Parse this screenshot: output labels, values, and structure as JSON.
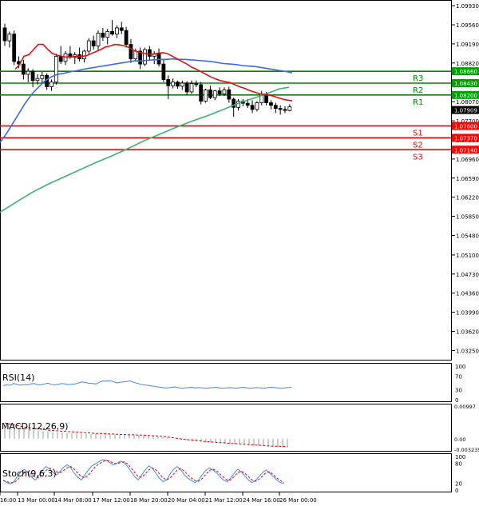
{
  "chart_data": {
    "type": "candlestick",
    "symbol": "EURUSD",
    "main": {
      "ylim": [
        1.0307,
        1.1001
      ],
      "y_ticks": [
        "1.09930",
        "1.09560",
        "1.09190",
        "1.08820",
        "1.08450",
        "1.08070",
        "1.07700",
        "1.07330",
        "1.06960",
        "1.06590",
        "1.06220",
        "1.05850",
        "1.05480",
        "1.05100",
        "1.04730",
        "1.04360",
        "1.03990",
        "1.03620",
        "1.03250"
      ],
      "price_tags": [
        {
          "value": "1.08660",
          "color": "#00a000"
        },
        {
          "value": "1.08430",
          "color": "#00a000"
        },
        {
          "value": "1.08200",
          "color": "#00a000"
        },
        {
          "value": "1.07909",
          "color": "#000000"
        },
        {
          "value": "1.07600",
          "color": "#ff0000"
        },
        {
          "value": "1.07370",
          "color": "#ff0000"
        },
        {
          "value": "1.07140",
          "color": "#ff0000"
        }
      ],
      "levels": [
        {
          "label": "R3",
          "value": 1.0866,
          "color": "#008800"
        },
        {
          "label": "R2",
          "value": 1.0843,
          "color": "#008800"
        },
        {
          "label": "R1",
          "value": 1.082,
          "color": "#008800"
        },
        {
          "label": "S1",
          "value": 1.076,
          "color": "#dd0000"
        },
        {
          "label": "S2",
          "value": 1.0737,
          "color": "#dd0000"
        },
        {
          "label": "S3",
          "value": 1.0714,
          "color": "#dd0000"
        }
      ],
      "candles": [
        [
          1.095,
          1.0958,
          1.0915,
          1.0925
        ],
        [
          1.0925,
          1.0943,
          1.0912,
          1.0938
        ],
        [
          1.0938,
          1.0945,
          1.0878,
          1.0885
        ],
        [
          1.0885,
          1.0895,
          1.0872,
          1.088
        ],
        [
          1.088,
          1.0888,
          1.085,
          1.086
        ],
        [
          1.086,
          1.0872,
          1.0845,
          1.0866
        ],
        [
          1.0866,
          1.087,
          1.0835,
          1.0848
        ],
        [
          1.0848,
          1.086,
          1.084,
          1.0852
        ],
        [
          1.0852,
          1.0865,
          1.0843,
          1.0858
        ],
        [
          1.0858,
          1.0862,
          1.083,
          1.0836
        ],
        [
          1.0836,
          1.085,
          1.0828,
          1.0845
        ],
        [
          1.0845,
          1.09,
          1.084,
          1.0895
        ],
        [
          1.0895,
          1.0915,
          1.088,
          1.0885
        ],
        [
          1.0885,
          1.0905,
          1.0878,
          1.09
        ],
        [
          1.09,
          1.0915,
          1.089,
          1.0893
        ],
        [
          1.0893,
          1.0903,
          1.088,
          1.0898
        ],
        [
          1.0898,
          1.0912,
          1.0885,
          1.089
        ],
        [
          1.089,
          1.0908,
          1.0883,
          1.0905
        ],
        [
          1.0905,
          1.093,
          1.0898,
          1.0925
        ],
        [
          1.0925,
          1.0935,
          1.0908,
          1.0915
        ],
        [
          1.0915,
          1.0945,
          1.0905,
          1.094
        ],
        [
          1.094,
          1.095,
          1.0925,
          1.0932
        ],
        [
          1.0932,
          1.0948,
          1.0918,
          1.0943
        ],
        [
          1.0943,
          1.0965,
          1.0935,
          1.0938
        ],
        [
          1.0938,
          1.0955,
          1.093,
          1.095
        ],
        [
          1.095,
          1.0962,
          1.0938,
          1.0945
        ],
        [
          1.0945,
          1.0952,
          1.0912,
          1.0918
        ],
        [
          1.0918,
          1.0928,
          1.0882,
          1.089
        ],
        [
          1.089,
          1.091,
          1.0885,
          1.0905
        ],
        [
          1.0905,
          1.0912,
          1.087,
          1.088
        ],
        [
          1.088,
          1.0912,
          1.0876,
          1.0908
        ],
        [
          1.0908,
          1.0915,
          1.0888,
          1.0895
        ],
        [
          1.0895,
          1.0905,
          1.088,
          1.09
        ],
        [
          1.09,
          1.091,
          1.0875,
          1.088
        ],
        [
          1.088,
          1.0888,
          1.0845,
          1.085
        ],
        [
          1.085,
          1.0858,
          1.0812,
          1.0838
        ],
        [
          1.0838,
          1.0852,
          1.0833,
          1.0845
        ],
        [
          1.0845,
          1.0848,
          1.0832,
          1.0837
        ],
        [
          1.0837,
          1.0848,
          1.083,
          1.0843
        ],
        [
          1.0843,
          1.0847,
          1.082,
          1.0826
        ],
        [
          1.0826,
          1.0848,
          1.0822,
          1.0842
        ],
        [
          1.0842,
          1.0848,
          1.0835,
          1.084
        ],
        [
          1.084,
          1.0845,
          1.0802,
          1.0808
        ],
        [
          1.0808,
          1.0832,
          1.0805,
          1.083
        ],
        [
          1.083,
          1.0838,
          1.0812,
          1.0815
        ],
        [
          1.0815,
          1.083,
          1.081,
          1.0828
        ],
        [
          1.0828,
          1.0835,
          1.0818,
          1.0822
        ],
        [
          1.0822,
          1.0835,
          1.0818,
          1.083
        ],
        [
          1.083,
          1.0836,
          1.0805,
          1.0812
        ],
        [
          1.0812,
          1.0815,
          1.0778,
          1.0796
        ],
        [
          1.0796,
          1.0812,
          1.079,
          1.0808
        ],
        [
          1.0808,
          1.0812,
          1.0798,
          1.0804
        ],
        [
          1.0804,
          1.0812,
          1.0795,
          1.08
        ],
        [
          1.08,
          1.081,
          1.0785,
          1.0792
        ],
        [
          1.0792,
          1.0808,
          1.0788,
          1.0805
        ],
        [
          1.0805,
          1.0828,
          1.08,
          1.0822
        ],
        [
          1.0822,
          1.0826,
          1.08,
          1.0805
        ],
        [
          1.0805,
          1.081,
          1.0792,
          1.08
        ],
        [
          1.08,
          1.0805,
          1.0785,
          1.0794
        ],
        [
          1.0794,
          1.08,
          1.0782,
          1.0792
        ],
        [
          1.0792,
          1.0798,
          1.0785,
          1.079
        ],
        [
          1.079,
          1.0802,
          1.0788,
          1.0797
        ]
      ],
      "ma_fast": [
        [
          19,
          1.087
        ],
        [
          24,
          1.0878
        ],
        [
          30,
          1.0895
        ],
        [
          36,
          1.0898
        ],
        [
          42,
          1.0908
        ],
        [
          48,
          1.0918
        ],
        [
          54,
          1.0918
        ],
        [
          60,
          1.0908
        ],
        [
          66,
          1.09
        ],
        [
          72,
          1.0897
        ],
        [
          78,
          1.0895
        ],
        [
          84,
          1.0893
        ],
        [
          90,
          1.0894
        ],
        [
          96,
          1.0895
        ],
        [
          102,
          1.0895
        ],
        [
          108,
          1.0896
        ],
        [
          114,
          1.09
        ],
        [
          120,
          1.0904
        ],
        [
          126,
          1.0908
        ],
        [
          132,
          1.0913
        ],
        [
          138,
          1.0915
        ],
        [
          144,
          1.0918
        ],
        [
          150,
          1.0917
        ],
        [
          156,
          1.0915
        ],
        [
          162,
          1.0912
        ],
        [
          168,
          1.0906
        ],
        [
          174,
          1.0903
        ],
        [
          180,
          1.0901
        ],
        [
          186,
          1.0899
        ],
        [
          192,
          1.0899
        ],
        [
          198,
          1.0901
        ],
        [
          204,
          1.0902
        ],
        [
          210,
          1.09
        ],
        [
          216,
          1.0895
        ],
        [
          222,
          1.089
        ],
        [
          228,
          1.0885
        ],
        [
          234,
          1.088
        ],
        [
          240,
          1.0874
        ],
        [
          246,
          1.087
        ],
        [
          252,
          1.0865
        ],
        [
          258,
          1.086
        ],
        [
          264,
          1.0855
        ],
        [
          270,
          1.0851
        ],
        [
          276,
          1.0848
        ],
        [
          282,
          1.0846
        ],
        [
          288,
          1.0844
        ],
        [
          294,
          1.084
        ],
        [
          300,
          1.0836
        ],
        [
          306,
          1.0833
        ],
        [
          312,
          1.0829
        ],
        [
          318,
          1.0826
        ],
        [
          324,
          1.0823
        ],
        [
          330,
          1.0821
        ],
        [
          336,
          1.082
        ],
        [
          342,
          1.0818
        ],
        [
          348,
          1.0815
        ],
        [
          354,
          1.0812
        ],
        [
          360,
          1.081
        ],
        [
          366,
          1.0809
        ]
      ],
      "ma_mid": [
        [
          0,
          1.0728
        ],
        [
          8,
          1.0745
        ],
        [
          16,
          1.0765
        ],
        [
          24,
          1.0785
        ],
        [
          32,
          1.0805
        ],
        [
          40,
          1.0822
        ],
        [
          48,
          1.0835
        ],
        [
          56,
          1.0847
        ],
        [
          64,
          1.0855
        ],
        [
          72,
          1.086
        ],
        [
          80,
          1.0862
        ],
        [
          88,
          1.0865
        ],
        [
          96,
          1.0867
        ],
        [
          104,
          1.087
        ],
        [
          112,
          1.0872
        ],
        [
          120,
          1.0874
        ],
        [
          128,
          1.0876
        ],
        [
          136,
          1.0878
        ],
        [
          144,
          1.088
        ],
        [
          152,
          1.0882
        ],
        [
          160,
          1.0884
        ],
        [
          168,
          1.0886
        ],
        [
          176,
          1.0886
        ],
        [
          184,
          1.0887
        ],
        [
          192,
          1.0888
        ],
        [
          200,
          1.0889
        ],
        [
          208,
          1.0889
        ],
        [
          216,
          1.089
        ],
        [
          224,
          1.0889
        ],
        [
          232,
          1.0889
        ],
        [
          240,
          1.0888
        ],
        [
          248,
          1.0887
        ],
        [
          256,
          1.0886
        ],
        [
          264,
          1.0885
        ],
        [
          272,
          1.0883
        ],
        [
          280,
          1.0881
        ],
        [
          288,
          1.088
        ],
        [
          296,
          1.0879
        ],
        [
          304,
          1.0877
        ],
        [
          312,
          1.0876
        ],
        [
          320,
          1.0875
        ],
        [
          328,
          1.0873
        ],
        [
          336,
          1.0871
        ],
        [
          344,
          1.0869
        ],
        [
          352,
          1.0867
        ],
        [
          360,
          1.0865
        ],
        [
          366,
          1.0863
        ]
      ],
      "ma_slow": [
        [
          0,
          1.0593
        ],
        [
          20,
          1.0612
        ],
        [
          40,
          1.0631
        ],
        [
          60,
          1.0647
        ],
        [
          80,
          1.0661
        ],
        [
          100,
          1.0675
        ],
        [
          120,
          1.0689
        ],
        [
          140,
          1.0702
        ],
        [
          160,
          1.0716
        ],
        [
          180,
          1.0731
        ],
        [
          200,
          1.0744
        ],
        [
          220,
          1.0757
        ],
        [
          240,
          1.0769
        ],
        [
          260,
          1.078
        ],
        [
          280,
          1.0792
        ],
        [
          300,
          1.0805
        ],
        [
          320,
          1.0815
        ],
        [
          340,
          1.0826
        ],
        [
          350,
          1.0832
        ],
        [
          362,
          1.0835
        ]
      ]
    },
    "x_ticks": [
      "16:00",
      "13 Mar 00:00",
      "14 Mar 08:00",
      "17 Mar 12:00",
      "18 Mar 20:00",
      "20 Mar 04:00",
      "21 Mar 12:00",
      "24 Mar 16:00",
      "26 Mar 00:00"
    ],
    "rsi": {
      "label": "RSI(14)",
      "ticks": [
        "100",
        "70",
        "30",
        "0"
      ],
      "values": [
        42,
        44,
        43,
        48,
        46,
        43,
        45,
        44,
        47,
        48,
        45,
        44,
        47,
        49,
        46,
        44,
        46,
        48,
        47,
        45,
        46,
        47,
        50,
        53,
        51,
        49,
        48,
        47,
        52,
        56,
        55,
        57,
        54,
        50,
        52,
        53,
        54,
        56,
        52,
        49,
        46,
        44,
        43,
        41,
        40,
        38,
        37,
        35,
        35,
        37,
        38,
        36,
        34,
        35,
        36,
        37,
        35,
        36,
        35,
        34,
        35,
        36,
        37,
        35,
        34,
        35,
        36,
        35,
        34,
        36,
        37,
        35,
        34,
        35,
        36,
        35,
        34,
        36,
        37,
        36,
        35,
        34,
        35,
        36,
        37
      ]
    },
    "macd": {
      "label": "MACD(12,26,9)",
      "ticks": [
        "0.00997",
        "0.00",
        "-0.003235"
      ],
      "values": [
        0.004,
        0.0038,
        0.0035,
        0.0033,
        0.003,
        0.0028,
        0.0026,
        0.0024,
        0.0023,
        0.0021,
        0.002,
        0.0019,
        0.0018,
        0.0017,
        0.0016,
        0.0016,
        0.0015,
        0.0015,
        0.0014,
        0.0014,
        0.0013,
        0.0013,
        0.0013,
        0.0013,
        0.0012,
        0.0012,
        0.0012,
        0.0011,
        0.0011,
        0.001,
        0.0009,
        0.0008,
        0.0007,
        0.0005,
        0.0003,
        0.0001,
        -0.0001,
        -0.0003,
        -0.0005,
        -0.0007,
        -0.0008,
        -0.001,
        -0.0011,
        -0.0012,
        -0.0013,
        -0.0014,
        -0.0015,
        -0.0016,
        -0.0017,
        -0.0018,
        -0.0019,
        -0.002,
        -0.0021,
        -0.0022,
        -0.0023,
        -0.0024,
        -0.0025,
        -0.0026,
        -0.0027,
        -0.0027
      ],
      "signal": [
        0.0048,
        0.0045,
        0.0042,
        0.0039,
        0.0036,
        0.0034,
        0.0032,
        0.003,
        0.0028,
        0.0026,
        0.0025,
        0.0024,
        0.0023,
        0.0022,
        0.0021,
        0.002,
        0.0019,
        0.0018,
        0.0017,
        0.0016,
        0.0016,
        0.0015,
        0.0014,
        0.0014,
        0.0013,
        0.0013,
        0.0012,
        0.0012,
        0.0011,
        0.0011,
        0.001,
        0.0009,
        0.0008,
        0.0007,
        0.0005,
        0.0003,
        0.0001,
        -0.0001,
        -0.0003,
        -0.0004,
        -0.0006,
        -0.0007,
        -0.0009,
        -0.001,
        -0.0011,
        -0.0012,
        -0.0013,
        -0.0014,
        -0.0015,
        -0.0016,
        -0.0017,
        -0.0018,
        -0.0019,
        -0.002,
        -0.0021,
        -0.0022,
        -0.0023,
        -0.0023,
        -0.0024,
        -0.0024
      ]
    },
    "stoch": {
      "label": "Stoch(9,6,3)",
      "ticks": [
        "100",
        "80",
        "20",
        "0"
      ],
      "k": [
        30,
        22,
        18,
        25,
        40,
        55,
        62,
        50,
        38,
        30,
        42,
        58,
        70,
        64,
        52,
        45,
        55,
        68,
        75,
        66,
        50,
        38,
        30,
        45,
        60,
        72,
        78,
        85,
        90,
        88,
        82,
        75,
        80,
        86,
        82,
        70,
        55,
        40,
        30,
        45,
        60,
        72,
        65,
        50,
        35,
        25,
        30,
        48,
        62,
        70,
        60,
        45,
        35,
        28,
        22,
        30,
        45,
        58,
        66,
        60,
        52,
        40,
        30,
        25,
        35,
        50,
        62,
        55,
        42,
        30,
        22,
        28,
        40,
        52,
        60,
        50,
        40,
        30,
        22,
        20
      ],
      "d": [
        28,
        25,
        22,
        22,
        30,
        42,
        52,
        55,
        48,
        38,
        36,
        45,
        58,
        64,
        62,
        54,
        52,
        58,
        66,
        70,
        62,
        50,
        40,
        36,
        45,
        58,
        70,
        78,
        84,
        88,
        86,
        80,
        78,
        82,
        84,
        78,
        66,
        52,
        40,
        38,
        48,
        60,
        66,
        60,
        48,
        36,
        30,
        36,
        48,
        60,
        64,
        56,
        45,
        35,
        28,
        26,
        34,
        46,
        58,
        62,
        58,
        48,
        38,
        30,
        30,
        40,
        52,
        56,
        50,
        40,
        30,
        26,
        32,
        42,
        52,
        54,
        46,
        36,
        28,
        22
      ]
    }
  }
}
